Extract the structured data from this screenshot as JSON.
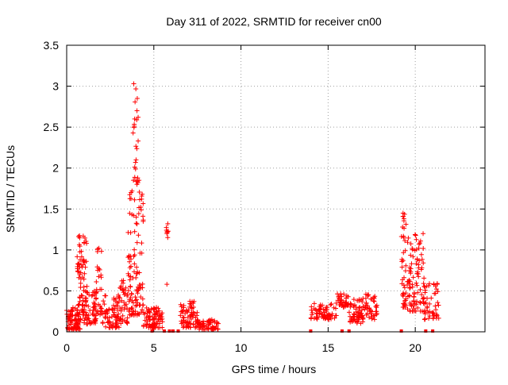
{
  "chart_data": {
    "type": "scatter",
    "title": "Day 311 of 2022, SRMTID for receiver cn00",
    "xlabel": "GPS time / hours",
    "ylabel": "SRMTID / TECUs",
    "xlim": [
      0,
      24
    ],
    "ylim": [
      0,
      3.5
    ],
    "x_ticks": [
      0,
      5,
      10,
      15,
      20
    ],
    "x_tick_labels": [
      "0",
      "5",
      "10",
      "15",
      "20"
    ],
    "y_ticks": [
      0,
      0.5,
      1,
      1.5,
      2,
      2.5,
      3,
      3.5
    ],
    "y_tick_labels": [
      "0",
      "0.5",
      "1",
      "1.5",
      "2",
      "2.5",
      "3",
      "3.5"
    ],
    "grid": true,
    "marker": "plus",
    "color": "#ff0000",
    "series": [
      {
        "name": "SRMTID",
        "clusters": [
          {
            "x_range": [
              0.0,
              0.8
            ],
            "y_range": [
              0.03,
              0.3
            ],
            "count": 90
          },
          {
            "x_range": [
              0.6,
              1.2
            ],
            "y_range": [
              0.2,
              1.18
            ],
            "count": 70
          },
          {
            "x_range": [
              1.0,
              1.7
            ],
            "y_range": [
              0.08,
              0.5
            ],
            "count": 60
          },
          {
            "x_range": [
              1.7,
              2.0
            ],
            "y_range": [
              0.2,
              1.02
            ],
            "count": 25
          },
          {
            "x_range": [
              2.0,
              3.0
            ],
            "y_range": [
              0.05,
              0.45
            ],
            "count": 70
          },
          {
            "x_range": [
              3.0,
              3.5
            ],
            "y_range": [
              0.1,
              0.65
            ],
            "count": 40
          },
          {
            "x_range": [
              3.5,
              4.4
            ],
            "y_range": [
              0.2,
              1.75
            ],
            "count": 110
          },
          {
            "x_range": [
              3.8,
              4.1
            ],
            "y_range": [
              1.8,
              3.03
            ],
            "count": 20
          },
          {
            "x_range": [
              4.4,
              5.5
            ],
            "y_range": [
              0.05,
              0.3
            ],
            "count": 80
          },
          {
            "x_range": [
              5.7,
              5.9
            ],
            "y_range": [
              1.15,
              1.32
            ],
            "count": 6
          },
          {
            "x_range": [
              6.5,
              7.5
            ],
            "y_range": [
              0.05,
              0.38
            ],
            "count": 70
          },
          {
            "x_range": [
              7.5,
              8.7
            ],
            "y_range": [
              0.03,
              0.15
            ],
            "count": 60
          },
          {
            "x_range": [
              14.0,
              15.5
            ],
            "y_range": [
              0.15,
              0.35
            ],
            "count": 70
          },
          {
            "x_range": [
              15.5,
              16.2
            ],
            "y_range": [
              0.3,
              0.47
            ],
            "count": 40
          },
          {
            "x_range": [
              16.2,
              17.0
            ],
            "y_range": [
              0.1,
              0.4
            ],
            "count": 60
          },
          {
            "x_range": [
              17.0,
              17.8
            ],
            "y_range": [
              0.15,
              0.46
            ],
            "count": 50
          },
          {
            "x_range": [
              19.2,
              19.5
            ],
            "y_range": [
              0.3,
              1.45
            ],
            "count": 40
          },
          {
            "x_range": [
              19.5,
              20.5
            ],
            "y_range": [
              0.25,
              1.2
            ],
            "count": 90
          },
          {
            "x_range": [
              20.5,
              21.4
            ],
            "y_range": [
              0.15,
              0.6
            ],
            "count": 50
          }
        ],
        "points": [
          [
            3.85,
            3.03
          ],
          [
            4.05,
            2.85
          ],
          [
            4.1,
            2.62
          ],
          [
            3.9,
            2.6
          ],
          [
            4.1,
            2.33
          ],
          [
            3.95,
            2.07
          ],
          [
            4.15,
            1.85
          ],
          [
            3.75,
            1.72
          ],
          [
            4.3,
            1.62
          ],
          [
            5.8,
            1.32
          ],
          [
            5.75,
            1.2
          ],
          [
            0.95,
            1.17
          ],
          [
            1.85,
            1.02
          ],
          [
            19.3,
            1.45
          ],
          [
            19.35,
            1.38
          ],
          [
            20.45,
            1.2
          ],
          [
            20.2,
            1.02
          ],
          [
            5.75,
            0.58
          ]
        ],
        "zero_points": [
          4.9,
          5.6,
          5.9,
          6.1,
          6.4,
          14.0,
          15.8,
          16.2,
          19.2,
          20.6,
          21.0
        ]
      }
    ]
  }
}
